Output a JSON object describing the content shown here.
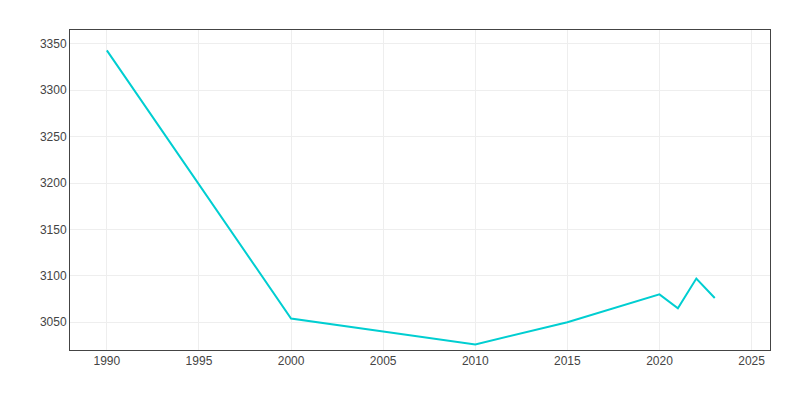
{
  "chart_data": {
    "type": "line",
    "x": [
      1990,
      2000,
      2005,
      2010,
      2015,
      2020,
      2021,
      2022,
      2023
    ],
    "values": [
      3343,
      3054,
      3040,
      3026,
      3050,
      3080,
      3065,
      3097,
      3076
    ],
    "color": "#00CED1",
    "xlim": [
      1988,
      2026
    ],
    "ylim": [
      3020,
      3365
    ],
    "xticks": [
      1990,
      1995,
      2000,
      2005,
      2010,
      2015,
      2020,
      2025
    ],
    "yticks": [
      3050,
      3100,
      3150,
      3200,
      3250,
      3300,
      3350
    ],
    "grid": true
  }
}
